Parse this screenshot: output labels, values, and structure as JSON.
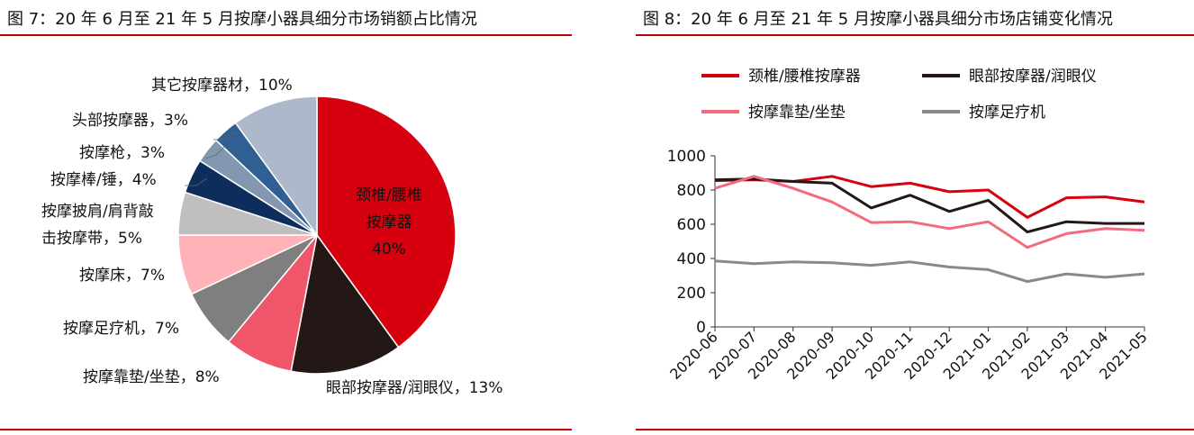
{
  "figures": {
    "left_title": "图 7：20 年 6 月至 21 年 5 月按摩小器具细分市场销额占比情况",
    "right_title": "图 8：20 年 6 月至 21 年 5 月按摩小器具细分市场店铺变化情况"
  },
  "colors": {
    "accent": "#c00000"
  },
  "chart_data": [
    {
      "type": "pie",
      "title": "图 7：20 年 6 月至 21 年 5 月按摩小器具细分市场销额占比情况",
      "slices": [
        {
          "label_lines": [
            "颈椎/腰椎",
            "按摩器",
            "40%"
          ],
          "name": "颈椎/腰椎按摩器",
          "value": 40,
          "color": "#d7000f"
        },
        {
          "label_lines": [
            "眼部按摩器/润眼仪，13%"
          ],
          "name": "眼部按摩器/润眼仪",
          "value": 13,
          "color": "#231815"
        },
        {
          "label_lines": [
            "按摩靠垫/坐垫，8%"
          ],
          "name": "按摩靠垫/坐垫",
          "value": 8,
          "color": "#f0566a"
        },
        {
          "label_lines": [
            "按摩足疗机，7%"
          ],
          "name": "按摩足疗机",
          "value": 7,
          "color": "#7f7f7f"
        },
        {
          "label_lines": [
            "按摩床，7%"
          ],
          "name": "按摩床",
          "value": 7,
          "color": "#ffb3b8"
        },
        {
          "label_lines": [
            "按摩披肩/肩背敲",
            "击按摩带，5%"
          ],
          "name": "按摩披肩/肩背敲击按摩带",
          "value": 5,
          "color": "#bfbfbf"
        },
        {
          "label_lines": [
            "按摩棒/锤，4%"
          ],
          "name": "按摩棒/锤",
          "value": 4,
          "color": "#0d2e5c"
        },
        {
          "label_lines": [
            "按摩枪，3%"
          ],
          "name": "按摩枪",
          "value": 3,
          "color": "#8497b0"
        },
        {
          "label_lines": [
            "头部按摩器，3%"
          ],
          "name": "头部按摩器",
          "value": 3,
          "color": "#2f5f93"
        },
        {
          "label_lines": [
            "其它按摩器材，10%"
          ],
          "name": "其它按摩器材",
          "value": 10,
          "color": "#adb9ca"
        }
      ]
    },
    {
      "type": "line",
      "title": "图 8：20 年 6 月至 21 年 5 月按摩小器具细分市场店铺变化情况",
      "x": [
        "2020-06",
        "2020-07",
        "2020-08",
        "2020-09",
        "2020-10",
        "2020-11",
        "2020-12",
        "2021-01",
        "2021-02",
        "2021-03",
        "2021-04",
        "2021-05"
      ],
      "ylim": [
        0,
        1000
      ],
      "yticks": [
        "0",
        "200",
        "400",
        "600",
        "800",
        "1000"
      ],
      "grid": false,
      "legend": "top",
      "series": [
        {
          "name": "颈椎/腰椎按摩器",
          "color": "#d7000f",
          "values": [
            855,
            860,
            850,
            880,
            820,
            840,
            790,
            800,
            640,
            755,
            760,
            730
          ]
        },
        {
          "name": "眼部按摩器/润眼仪",
          "color": "#231815",
          "values": [
            860,
            865,
            850,
            840,
            695,
            770,
            675,
            740,
            555,
            615,
            605,
            605
          ]
        },
        {
          "name": "按摩靠垫/坐垫",
          "color": "#f46b7b",
          "values": [
            810,
            880,
            810,
            730,
            610,
            615,
            575,
            615,
            465,
            545,
            575,
            565
          ]
        },
        {
          "name": "按摩足疗机",
          "color": "#898989",
          "values": [
            385,
            370,
            380,
            375,
            360,
            380,
            350,
            335,
            265,
            310,
            290,
            310
          ]
        }
      ]
    }
  ]
}
